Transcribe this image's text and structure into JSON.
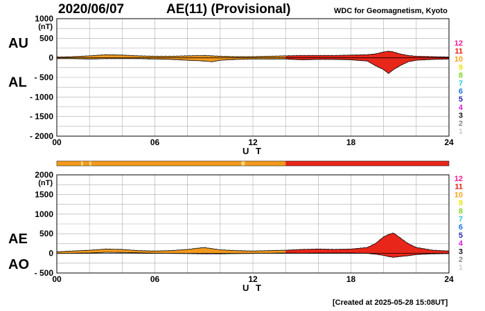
{
  "header": {
    "date": "2020/06/07",
    "title": "AE(11) (Provisional)",
    "org": "WDC for Geomagnetism, Kyoto"
  },
  "footer": {
    "created": "[Created at 2025-05-28 15:08UT]"
  },
  "legend_scale": {
    "labels": [
      "12",
      "11",
      "10",
      "9",
      "8",
      "7",
      "6",
      "5",
      "4",
      "3",
      "2",
      "1"
    ],
    "colors": [
      "#ff1493",
      "#e81a0c",
      "#f7a21b",
      "#e6e600",
      "#7ed321",
      "#20c5e0",
      "#1e6fe6",
      "#2a1fa8",
      "#d21fd2",
      "#111111",
      "#888888",
      "#cccccc"
    ]
  },
  "colors": {
    "orange": "#f39a1e",
    "red": "#e8261a",
    "grid": "#aaaaaa"
  },
  "chart_data": [
    {
      "type": "area",
      "panel": "AU/AL",
      "left_labels": [
        "AU",
        "AL"
      ],
      "xlabel": "U T",
      "x_ticks": [
        "00",
        "06",
        "12",
        "18",
        "24"
      ],
      "xlim": [
        0,
        24
      ],
      "ylim": [
        -2000,
        1000
      ],
      "y_ticks": [
        1000,
        500,
        0,
        -500,
        -1000,
        -1500,
        -2000
      ],
      "y_tick_labels": [
        "1000",
        "500",
        "0",
        "- 500",
        "- 1000",
        "- 1500",
        "- 2000"
      ],
      "unit": "(nT)",
      "color_change_hour": 14,
      "series": [
        {
          "name": "AU",
          "x": [
            0,
            1,
            2,
            3,
            4,
            5,
            6,
            7,
            8,
            9,
            10,
            11,
            12,
            13,
            14,
            15,
            16,
            17,
            18,
            19,
            19.5,
            20,
            20.3,
            20.6,
            21,
            21.5,
            22,
            23,
            24
          ],
          "values": [
            20,
            30,
            50,
            80,
            70,
            50,
            40,
            40,
            50,
            60,
            40,
            30,
            30,
            40,
            50,
            60,
            60,
            60,
            70,
            80,
            100,
            150,
            170,
            150,
            100,
            60,
            40,
            30,
            20
          ]
        },
        {
          "name": "AL",
          "x": [
            0,
            1,
            2,
            3,
            4,
            5,
            6,
            7,
            8,
            9,
            9.5,
            10,
            11,
            12,
            13,
            14,
            15,
            16,
            17,
            18,
            19,
            19.5,
            20,
            20.3,
            20.6,
            21,
            21.5,
            22,
            23,
            24
          ],
          "values": [
            -20,
            -20,
            -30,
            -20,
            -20,
            -20,
            -30,
            -40,
            -60,
            -80,
            -100,
            -60,
            -40,
            -30,
            -30,
            -30,
            -50,
            -40,
            -40,
            -50,
            -80,
            -200,
            -300,
            -400,
            -300,
            -200,
            -100,
            -60,
            -40,
            -30
          ]
        }
      ]
    },
    {
      "type": "area",
      "panel": "AE/AO",
      "left_labels": [
        "AE",
        "AO"
      ],
      "xlabel": "U T",
      "x_ticks": [
        "00",
        "06",
        "12",
        "18",
        "24"
      ],
      "xlim": [
        0,
        24
      ],
      "ylim": [
        -500,
        2000
      ],
      "y_ticks": [
        2000,
        1500,
        1000,
        500,
        0,
        -500
      ],
      "y_tick_labels": [
        "2000",
        "1500",
        "1000",
        "500",
        "0",
        "- 500"
      ],
      "unit": "(nT)",
      "color_change_hour": 14,
      "series": [
        {
          "name": "AE",
          "x": [
            0,
            1,
            2,
            3,
            4,
            5,
            6,
            7,
            8,
            9,
            10,
            11,
            12,
            13,
            14,
            15,
            16,
            17,
            18,
            19,
            19.5,
            20,
            20.3,
            20.6,
            21,
            21.5,
            22,
            23,
            24
          ],
          "values": [
            40,
            60,
            80,
            110,
            100,
            70,
            60,
            70,
            100,
            150,
            90,
            70,
            60,
            70,
            80,
            100,
            110,
            100,
            110,
            150,
            250,
            420,
            480,
            520,
            400,
            250,
            150,
            80,
            60
          ]
        },
        {
          "name": "AO",
          "x": [
            0,
            1,
            2,
            3,
            4,
            5,
            6,
            7,
            8,
            9,
            10,
            11,
            12,
            13,
            14,
            15,
            16,
            17,
            18,
            19,
            19.5,
            20,
            20.3,
            20.6,
            21,
            21.5,
            22,
            23,
            24
          ],
          "values": [
            0,
            5,
            10,
            30,
            25,
            15,
            5,
            0,
            -5,
            -10,
            -10,
            -5,
            0,
            5,
            10,
            5,
            10,
            10,
            10,
            0,
            -20,
            -50,
            -80,
            -100,
            -80,
            -60,
            -30,
            -10,
            -5
          ]
        }
      ]
    }
  ],
  "activity_bar": {
    "segments": [
      {
        "start": 0,
        "end": 1.5,
        "level": "orange"
      },
      {
        "start": 1.5,
        "end": 1.6,
        "level": "light"
      },
      {
        "start": 1.6,
        "end": 2.0,
        "level": "orange"
      },
      {
        "start": 2.0,
        "end": 2.1,
        "level": "light"
      },
      {
        "start": 2.1,
        "end": 11.3,
        "level": "orange"
      },
      {
        "start": 11.3,
        "end": 11.5,
        "level": "light"
      },
      {
        "start": 11.5,
        "end": 14.0,
        "level": "orange"
      },
      {
        "start": 14.0,
        "end": 24.0,
        "level": "red"
      }
    ]
  }
}
